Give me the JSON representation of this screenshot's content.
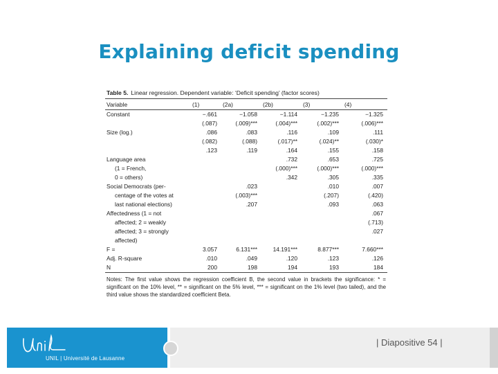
{
  "slide": {
    "title": "Explaining deficit spending"
  },
  "table": {
    "caption_label": "Table 5.",
    "caption_text": "Linear regression. Dependent variable: ‘Deficit spending’ (factor scores)",
    "headers": [
      "Variable",
      "(1)",
      "(2a)",
      "(2b)",
      "(3)",
      "(4)"
    ],
    "rows": [
      [
        "Constant",
        "−.661",
        "−1.058",
        "−1.114",
        "−1.235",
        "−1.325"
      ],
      [
        "",
        "(.087)",
        "(.009)***",
        "(.004)***",
        "(.002)***",
        "(.006)***"
      ],
      [
        "Size (log.)",
        ".086",
        ".083",
        ".116",
        ".109",
        ".111"
      ],
      [
        "",
        "(.082)",
        "(.088)",
        "(.017)**",
        "(.024)**",
        "(.030)*"
      ],
      [
        "",
        ".123",
        ".119",
        ".164",
        ".155",
        ".158"
      ],
      [
        "Language area",
        "",
        "",
        ".732",
        ".653",
        ".725"
      ],
      [
        "(1 = French,",
        "",
        "",
        "(.000)***",
        "(.000)***",
        "(.000)***"
      ],
      [
        "0 = others)",
        "",
        "",
        ".342",
        ".305",
        ".335"
      ],
      [
        "Social Democrats (per-",
        "",
        ".023",
        "",
        ".010",
        ".007"
      ],
      [
        "centage of the votes at",
        "",
        "(.003)***",
        "",
        "(.207)",
        "(.420)"
      ],
      [
        "last national elections)",
        "",
        ".207",
        "",
        ".093",
        ".063"
      ],
      [
        "Affectedness (1 = not",
        "",
        "",
        "",
        "",
        ".067"
      ],
      [
        "affected; 2 = weakly",
        "",
        "",
        "",
        "",
        "(.713)"
      ],
      [
        "affected; 3 = strongly",
        "",
        "",
        "",
        "",
        ".027"
      ],
      [
        "affected)",
        "",
        "",
        "",
        "",
        ""
      ],
      [
        "F =",
        "3.057",
        "6.131***",
        "14.191***",
        "8.877***",
        "7.660***"
      ],
      [
        "Adj. R-square",
        ".010",
        ".049",
        ".120",
        ".123",
        ".126"
      ],
      [
        "N",
        "200",
        "198",
        "194",
        "193",
        "184"
      ]
    ],
    "notes": "Notes: The first value shows the regression coefficient B, the second value in brackets the significance: * = significant on the 10% level, ** = significant on the 5% level, *** = significant on the 1% level (two tailed), and the third value shows the standardized coefficient Beta."
  },
  "footer": {
    "logo_text": "UNIL | Université de Lausanne",
    "slide_number": "| Diapositive 54 |",
    "accent_color": "#1a93cf"
  }
}
